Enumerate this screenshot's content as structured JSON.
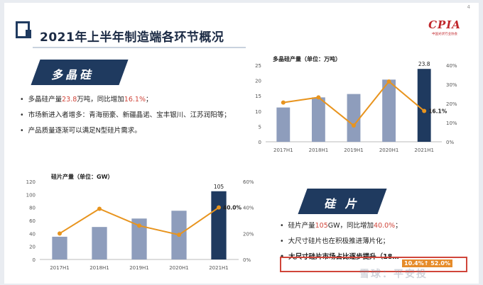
{
  "page_number": "4",
  "title": "2021年上半年制造端各环节概况",
  "logo": {
    "mark": "CPIA",
    "sub": "中国光伏行业协会"
  },
  "section1": {
    "banner": "多晶硅",
    "bullets": [
      {
        "pre": "多晶硅产量",
        "hl1": "23.8",
        "mid": "万吨，同比增加",
        "hl2": "16.1%",
        "post": "；"
      },
      {
        "text": "市场新进入者增多：青海丽豪、新疆晶诺、宝丰银川、江苏润阳等；"
      },
      {
        "text": "产品质量逐渐可以满足N型硅片需求。"
      }
    ]
  },
  "section2": {
    "banner": "硅 片",
    "bullets": [
      {
        "pre": "硅片产量",
        "hl1": "105",
        "mid": "GW，同比增加",
        "hl2": "40.0%",
        "post": "；"
      },
      {
        "text": "大尺寸硅片也在积极推进薄片化；"
      },
      {
        "text": "大尺寸硅片市场占比逐步提升（18…"
      }
    ],
    "overlay_tag": "10.4%↑ 52.0%"
  },
  "watermark": "雪球：平安投",
  "colors": {
    "navy": "#1f3a5f",
    "bar": "#8e9dbc",
    "line": "#e8941e",
    "highlight": "#d0453a"
  },
  "chart_data": [
    {
      "type": "bar",
      "title": "多晶硅产量（单位：万吨）",
      "categories": [
        "2017H1",
        "2018H1",
        "2019H1",
        "2020H1",
        "2021H1"
      ],
      "series": [
        {
          "values": [
            11.2,
            14.5,
            15.6,
            20.3,
            23.8
          ]
        },
        {
          "values": [
            20.5,
            23.2,
            8.5,
            31.5,
            16.1
          ],
          "axis": "right"
        }
      ],
      "bar_label": "23.8",
      "line_label": "16.1%",
      "ylim": [
        0,
        25
      ],
      "y_ticks": [
        "0",
        "5",
        "10",
        "15",
        "20",
        "25"
      ],
      "y2lim": [
        0,
        40
      ],
      "y2_ticks": [
        "0%",
        "10%",
        "20%",
        "30%",
        "40%"
      ]
    },
    {
      "type": "bar",
      "title": "硅片产量（单位：GW）",
      "categories": [
        "2017H1",
        "2018H1",
        "2019H1",
        "2020H1",
        "2021H1"
      ],
      "series": [
        {
          "values": [
            35,
            50,
            63,
            75,
            105
          ]
        },
        {
          "values": [
            20,
            39,
            26,
            19,
            40.0
          ],
          "axis": "right"
        }
      ],
      "bar_label": "105",
      "line_label": "40.0%",
      "ylim": [
        0,
        120
      ],
      "y_ticks": [
        "0",
        "20",
        "40",
        "60",
        "80",
        "100",
        "120"
      ],
      "y2lim": [
        0,
        60
      ],
      "y2_ticks": [
        "0%",
        "20%",
        "40%",
        "60%"
      ]
    }
  ]
}
